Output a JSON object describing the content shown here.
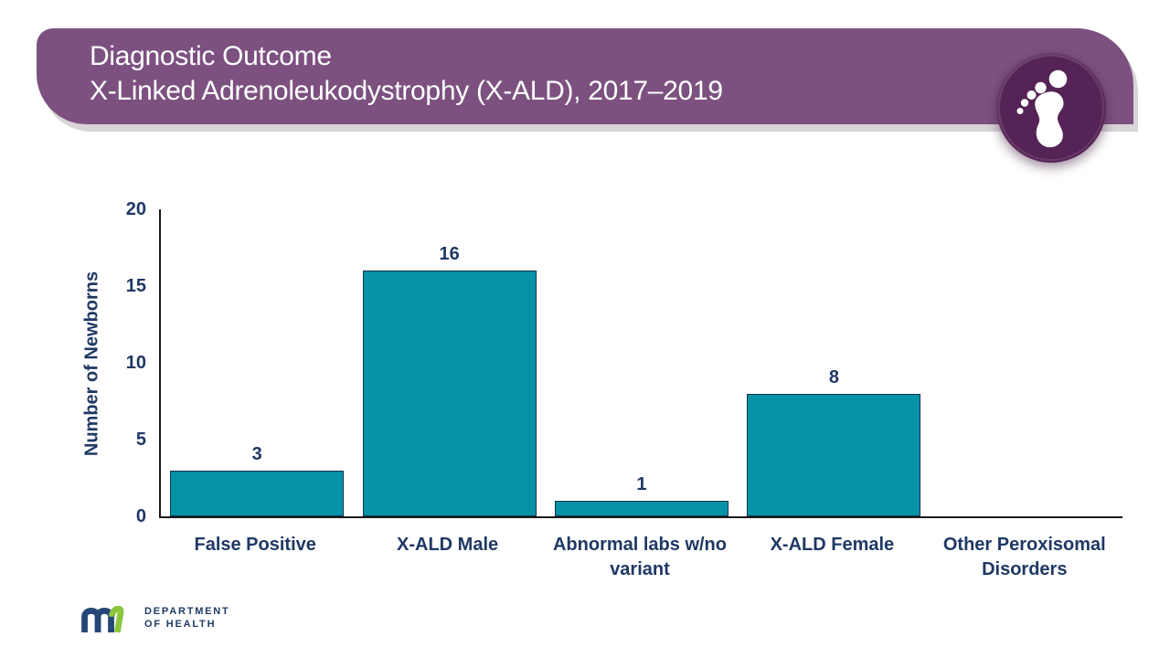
{
  "header": {
    "title_line1": "Diagnostic Outcome",
    "title_line2": "X-Linked Adrenoleukodystrophy (X-ALD), 2017–2019",
    "banner_color": "#7c5180",
    "badge_color": "#552355",
    "badge_icon": "baby-footprint"
  },
  "chart_data": {
    "type": "bar",
    "title": "",
    "xlabel": "",
    "ylabel": "Number of Newborns",
    "categories": [
      "False Positive",
      "X-ALD Male",
      "Abnormal labs w/no variant",
      "X-ALD Female",
      "Other Peroxisomal Disorders"
    ],
    "category_lines": [
      [
        "False Positive"
      ],
      [
        "X-ALD Male"
      ],
      [
        "Abnormal labs w/no",
        "variant"
      ],
      [
        "X-ALD Female"
      ],
      [
        "Other Peroxisomal",
        "Disorders"
      ]
    ],
    "values": [
      3,
      16,
      1,
      8,
      0
    ],
    "ylim": [
      0,
      20
    ],
    "yticks": [
      0,
      5,
      10,
      15,
      20
    ],
    "grid": false,
    "legend": "none",
    "bar_color": "#0892a8",
    "bar_border_color": "#0d3349",
    "axis_color": "#1a1a1a",
    "label_color": "#1f3864"
  },
  "footer": {
    "logo_mark": "mn",
    "dept_line1": "DEPARTMENT",
    "dept_line2": "OF HEALTH",
    "logo_blue": "#264678",
    "logo_green": "#8cc63f",
    "text_color": "#1e3c64"
  }
}
